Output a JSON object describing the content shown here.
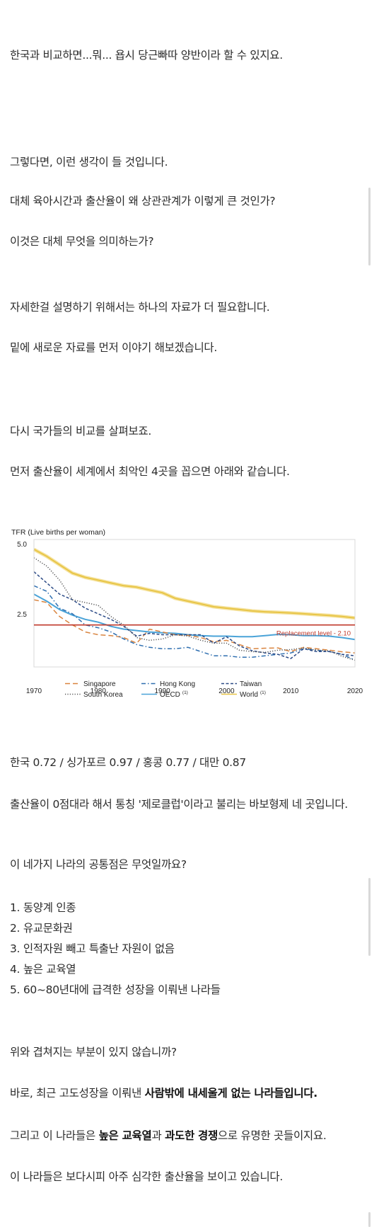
{
  "paragraphs": [
    {
      "id": "p1",
      "text": "한국과 비교하면...뭐... 욥시 당근빠따 양반이라 할 수 있지요."
    },
    {
      "id": "p2",
      "text": "그렇다면, 이런 생각이 들 것입니다."
    },
    {
      "id": "p3",
      "text": "대체 육아시간과 출산율이 왜 상관관계가 이렇게 큰 것인가?"
    },
    {
      "id": "p4",
      "text": "이것은 대체 무엇을 의미하는가?"
    },
    {
      "id": "p5",
      "text": "자세한걸 설명하기 위해서는 하나의 자료가 더 필요합니다."
    },
    {
      "id": "p6",
      "text": "밑에 새로운 자료를 먼저 이야기 해보겠습니다."
    },
    {
      "id": "p7",
      "text": "다시 국가들의 비교를 살펴보죠."
    },
    {
      "id": "p8",
      "text": "먼저 출산율이 세계에서 최악인 4곳을 꼽으면 아래와 같습니다."
    },
    {
      "id": "p9",
      "text": "한국 0.72 / 싱가포르 0.97 / 홍콩 0.77 / 대만 0.87"
    },
    {
      "id": "p10",
      "text": "출산율이 0점대라 해서 통칭 '제로클럽'이라고 불리는 바보형제 네 곳입니다."
    },
    {
      "id": "p11",
      "text": "이 네가지 나라의 공통점은 무엇일까요?"
    },
    {
      "id": "p17",
      "text": "위와 겹쳐지는 부분이 있지 않습니까?"
    },
    {
      "id": "p21",
      "text": "이 나라들은 보다시피 아주 심각한 출산율을 보이고 있습니다."
    }
  ],
  "list": [
    "1. 동양계 인종",
    "2. 유교문화권",
    "3. 인적자원 빼고 특출난 자원이 없음",
    "4. 높은 교육열",
    "5. 60~80년대에 급격한 성장을 이뤄낸 나라들"
  ],
  "p18": {
    "pre": "바로, 최근 고도성장을 이뤄낸 ",
    "bold": "사람밖에 내세울게 없는 나라들입니다."
  },
  "p19": {
    "pre": "그리고 이 나라들은 ",
    "bold1": "높은 교육열",
    "mid": "과 ",
    "bold2": "과도한 경쟁",
    "post": "으로 유명한 곳들이지요."
  },
  "chart_data": {
    "type": "line",
    "ylabel": "TFR (Live births per woman)",
    "xlim": [
      1970,
      2020
    ],
    "ylim": [
      0.6,
      5.0
    ],
    "yticks": [
      "5.0",
      "2.5"
    ],
    "xticks": [
      "1970",
      "1980",
      "1990",
      "2000",
      "2010",
      "2020"
    ],
    "grid": false,
    "legend": "bottom",
    "replacement": {
      "value": 2.1,
      "label": "Replacement level - 2.10",
      "color": "#c0392b"
    },
    "x": [
      1970,
      1972,
      1974,
      1976,
      1978,
      1980,
      1982,
      1984,
      1986,
      1988,
      1990,
      1992,
      1994,
      1996,
      1998,
      2000,
      2002,
      2004,
      2006,
      2008,
      2010,
      2012,
      2014,
      2016,
      2018,
      2020
    ],
    "series": [
      {
        "name": "World",
        "color": "#e8c547",
        "style": "solid",
        "sup": "(1)",
        "values": [
          4.8,
          4.55,
          4.25,
          3.95,
          3.8,
          3.7,
          3.6,
          3.5,
          3.45,
          3.35,
          3.25,
          3.05,
          2.95,
          2.85,
          2.75,
          2.7,
          2.65,
          2.6,
          2.57,
          2.55,
          2.53,
          2.5,
          2.47,
          2.44,
          2.4,
          2.35
        ]
      },
      {
        "name": "OECD",
        "color": "#4aa3d8",
        "style": "solid",
        "sup": "(1)",
        "values": [
          3.2,
          2.95,
          2.65,
          2.45,
          2.3,
          2.2,
          2.05,
          1.95,
          1.9,
          1.85,
          1.82,
          1.8,
          1.75,
          1.72,
          1.7,
          1.7,
          1.68,
          1.68,
          1.72,
          1.76,
          1.75,
          1.72,
          1.72,
          1.7,
          1.65,
          1.58
        ]
      },
      {
        "name": "Singapore",
        "color": "#d9843f",
        "style": "longdash",
        "values": [
          3.0,
          2.9,
          2.4,
          2.1,
          1.85,
          1.75,
          1.72,
          1.65,
          1.45,
          1.95,
          1.85,
          1.75,
          1.73,
          1.65,
          1.5,
          1.55,
          1.4,
          1.25,
          1.27,
          1.28,
          1.15,
          1.3,
          1.25,
          1.2,
          1.14,
          1.1
        ]
      },
      {
        "name": "Hong Kong",
        "color": "#2f6fb0",
        "style": "dashdot",
        "values": [
          3.5,
          3.3,
          2.7,
          2.5,
          2.1,
          2.0,
          1.85,
          1.6,
          1.4,
          1.3,
          1.25,
          1.25,
          1.3,
          1.15,
          1.0,
          1.0,
          0.95,
          0.95,
          1.0,
          1.05,
          1.1,
          1.25,
          1.2,
          1.15,
          1.05,
          0.85
        ]
      },
      {
        "name": "Taiwan",
        "color": "#2b4a86",
        "style": "dash",
        "values": [
          4.0,
          3.6,
          3.2,
          3.0,
          2.7,
          2.5,
          2.3,
          2.05,
          1.7,
          1.8,
          1.75,
          1.75,
          1.75,
          1.75,
          1.45,
          1.68,
          1.35,
          1.18,
          1.1,
          1.05,
          0.9,
          1.25,
          1.15,
          1.15,
          1.05,
          1.0
        ]
      },
      {
        "name": "South Korea",
        "color": "#555555",
        "style": "dotted",
        "values": [
          4.5,
          4.2,
          3.7,
          3.0,
          2.9,
          2.8,
          2.4,
          2.1,
          1.65,
          1.55,
          1.6,
          1.75,
          1.7,
          1.55,
          1.45,
          1.45,
          1.2,
          1.15,
          1.12,
          1.2,
          1.22,
          1.28,
          1.2,
          1.18,
          0.98,
          0.84
        ]
      }
    ]
  }
}
